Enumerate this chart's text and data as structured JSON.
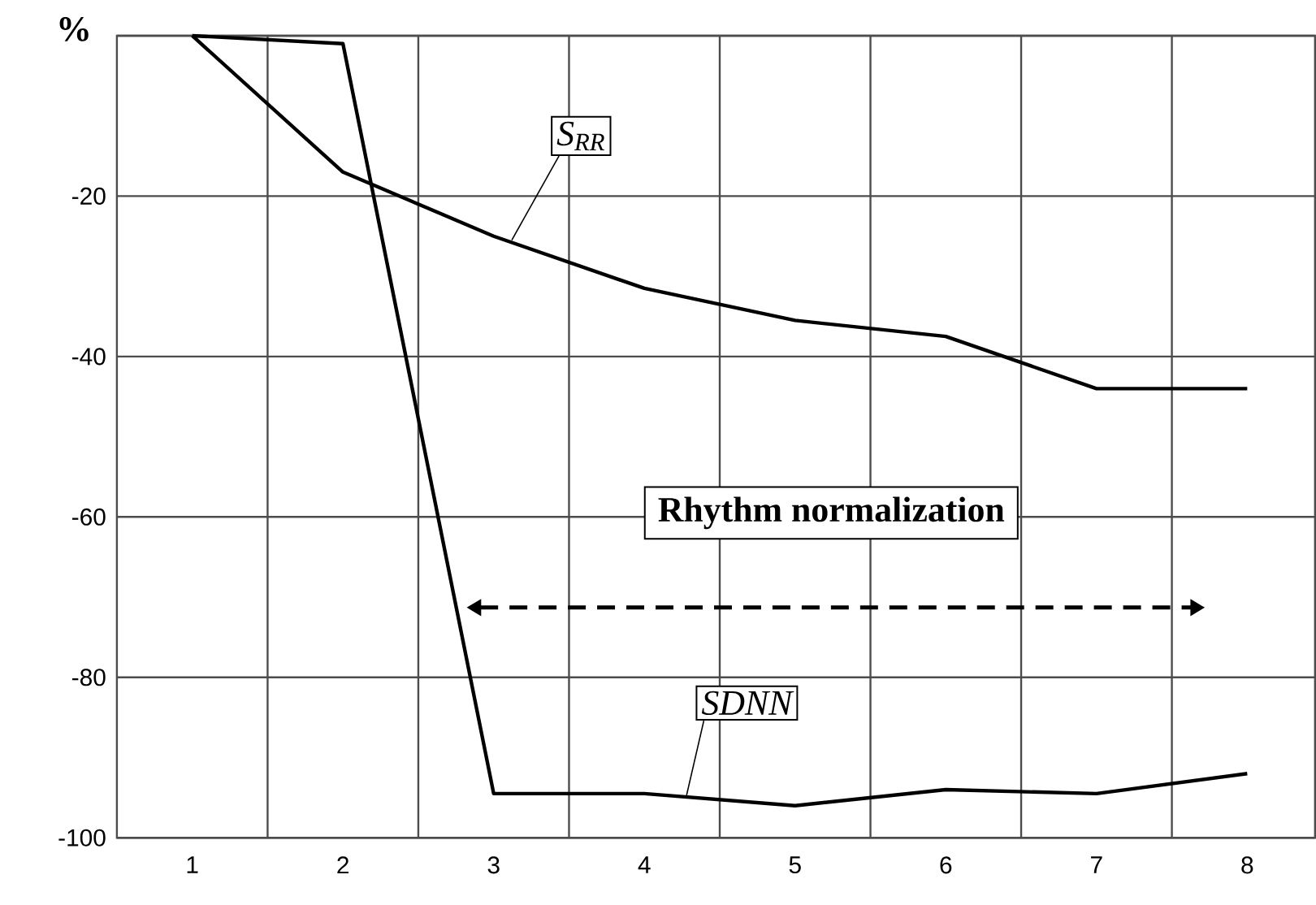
{
  "chart_data": {
    "type": "line",
    "ylabel": "%",
    "categories": [
      "1",
      "2",
      "3",
      "4",
      "5",
      "6",
      "7",
      "8"
    ],
    "series": [
      {
        "name": "S$_{RR}$",
        "color": "#000000",
        "values": [
          0,
          -17,
          -25,
          -31.5,
          -35.5,
          -37.5,
          -44,
          -44
        ]
      },
      {
        "name": "SDNN",
        "color": "#000000",
        "values": [
          0,
          -1,
          -94.5,
          -94.5,
          -96,
          -94,
          -94.5,
          -92
        ]
      }
    ],
    "ylim": [
      -100,
      0
    ],
    "yticks": [
      {
        "value": 0,
        "label": null
      },
      -20,
      -40,
      -60,
      -80,
      -100
    ],
    "grid": true,
    "marker": "none",
    "line_style": "solid",
    "annotations": [
      "Rhythm normalization"
    ]
  }
}
